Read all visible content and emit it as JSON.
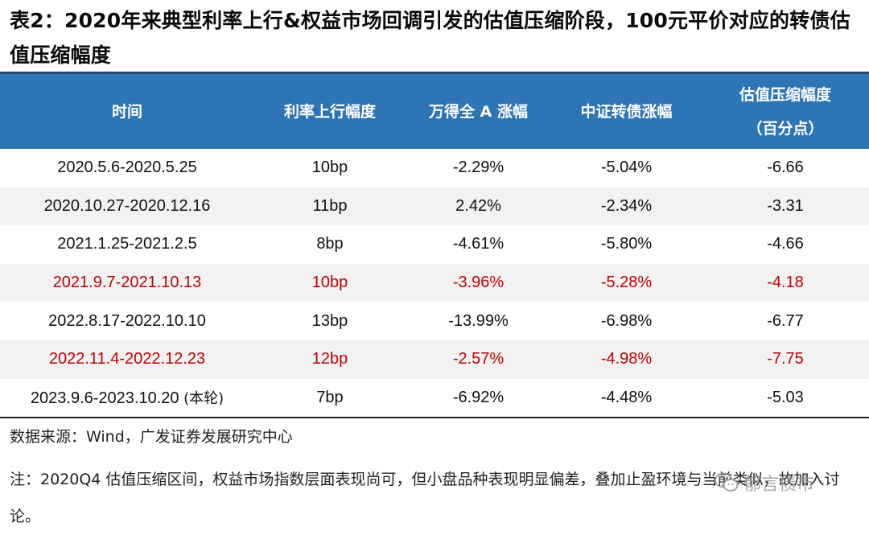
{
  "title": "表2：2020年来典型利率上行&权益市场回调引发的估值压缩阶段，100元平价对应的转债估值压缩幅度",
  "table": {
    "headers": [
      "时间",
      "利率上行幅度",
      "万得全 A 涨幅",
      "中证转债涨幅",
      "估值压缩幅度"
    ],
    "header_unit": "（百分点）",
    "rows": [
      {
        "period": "2020.5.6-2020.5.25",
        "note": "",
        "rate_rise": "10bp",
        "wind_a": "-2.29%",
        "cb_index": "-5.04%",
        "compression": "-6.66",
        "highlight": false
      },
      {
        "period": "2020.10.27-2020.12.16",
        "note": "",
        "rate_rise": "11bp",
        "wind_a": "2.42%",
        "cb_index": "-2.34%",
        "compression": "-3.31",
        "highlight": false
      },
      {
        "period": "2021.1.25-2021.2.5",
        "note": "",
        "rate_rise": "8bp",
        "wind_a": "-4.61%",
        "cb_index": "-5.80%",
        "compression": "-4.66",
        "highlight": false
      },
      {
        "period": "2021.9.7-2021.10.13",
        "note": "",
        "rate_rise": "10bp",
        "wind_a": "-3.96%",
        "cb_index": "-5.28%",
        "compression": "-4.18",
        "highlight": true
      },
      {
        "period": "2022.8.17-2022.10.10",
        "note": "",
        "rate_rise": "13bp",
        "wind_a": "-13.99%",
        "cb_index": "-6.98%",
        "compression": "-6.77",
        "highlight": false
      },
      {
        "period": "2022.11.4-2022.12.23",
        "note": "",
        "rate_rise": "12bp",
        "wind_a": "-2.57%",
        "cb_index": "-4.98%",
        "compression": "-7.75",
        "highlight": true
      },
      {
        "period": "2023.9.6-2023.10.20",
        "note": "(本轮)",
        "rate_rise": "7bp",
        "wind_a": "-6.92%",
        "cb_index": "-4.48%",
        "compression": "-5.03",
        "highlight": false
      }
    ]
  },
  "source": "数据来源：Wind，广发证券发展研究中心",
  "remark": "注：2020Q4 估值压缩区间，权益市场指数层面表现尚可，但小盘品种表现明显偏差，叠加止盈环境与当前类似，故加入讨论。",
  "watermark": {
    "text": "郁言债市",
    "icon": "wechat-icon"
  },
  "colors": {
    "header_bg": "#2e75b6",
    "highlight_text": "#c00000",
    "shade_row": "#f2f2f2"
  }
}
